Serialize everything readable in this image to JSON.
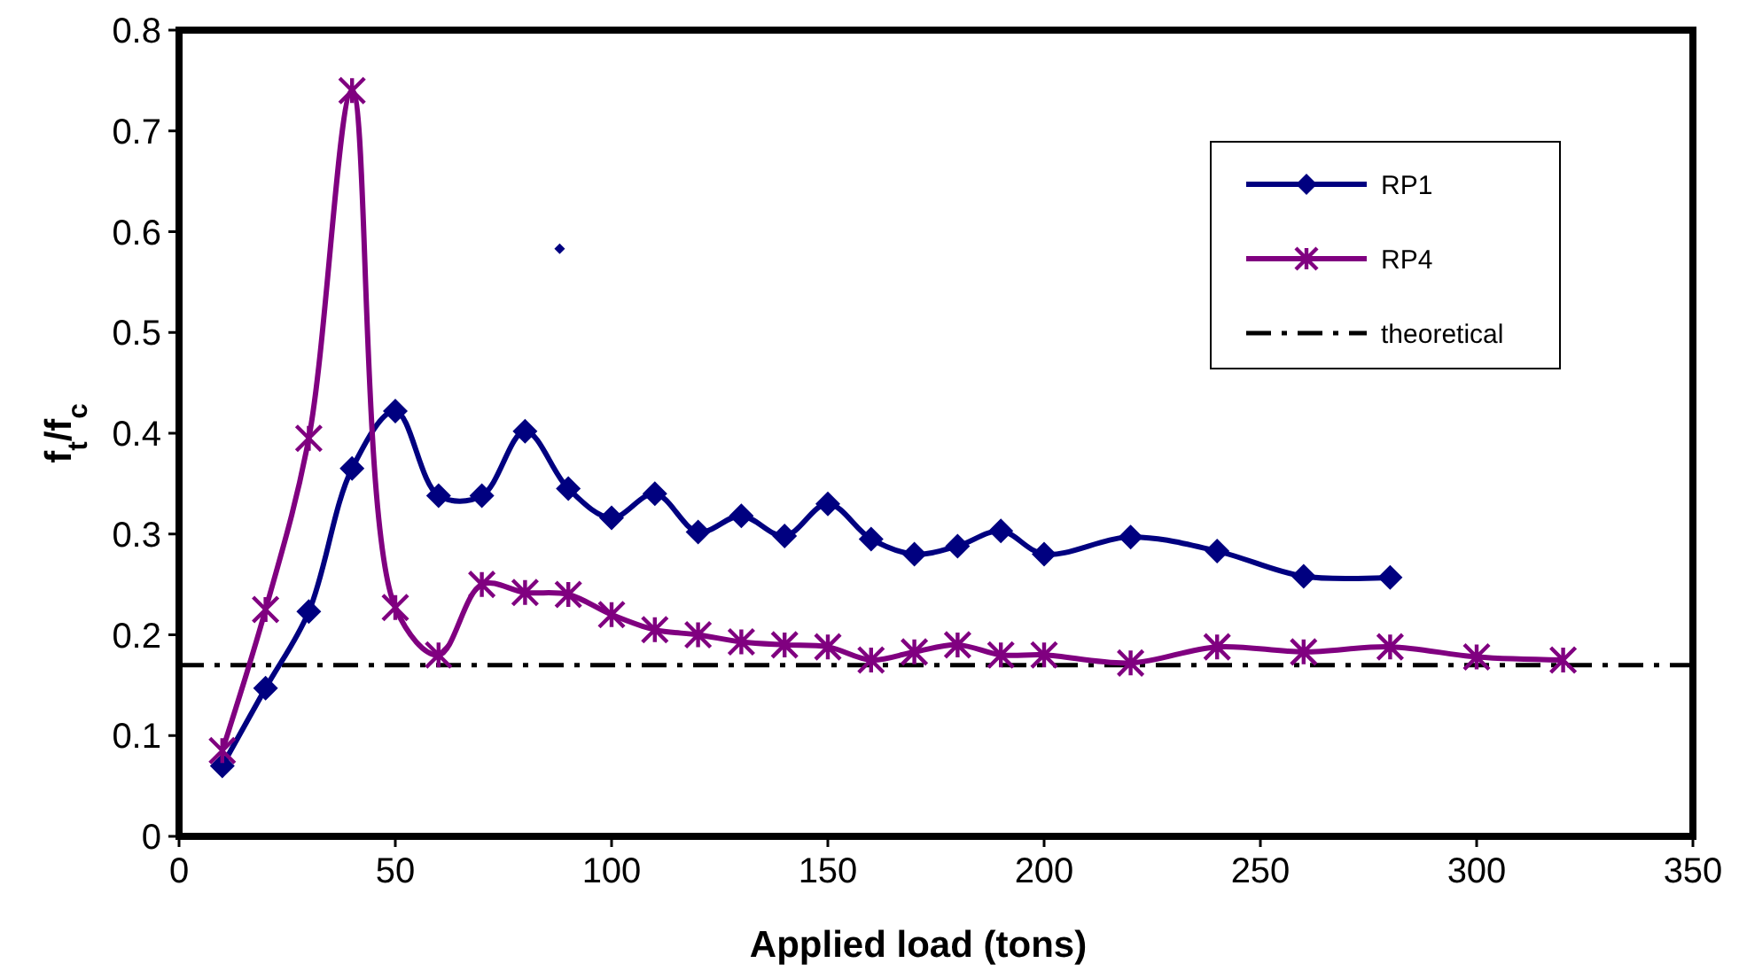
{
  "chart_data": {
    "type": "line",
    "xlabel": "Applied load (tons)",
    "ylabel": "f$_{t}$/f$_{c}$",
    "xlim": [
      0,
      350
    ],
    "xticks": [
      0,
      50,
      100,
      150,
      200,
      250,
      300,
      350
    ],
    "ylim": [
      0,
      0.8
    ],
    "yticks": [
      0,
      0.1,
      0.2,
      0.3,
      0.4,
      0.5,
      0.6,
      0.7,
      0.8
    ],
    "grid": false,
    "legend": "top right",
    "series": [
      {
        "name": "RP1",
        "color": "#000080",
        "marker": "diamond",
        "x": [
          10,
          20,
          30,
          40,
          50,
          60,
          70,
          80,
          90,
          100,
          110,
          120,
          130,
          140,
          150,
          160,
          170,
          180,
          190,
          200,
          220,
          240,
          260,
          280
        ],
        "values": [
          0.07,
          0.147,
          0.223,
          0.365,
          0.422,
          0.338,
          0.338,
          0.402,
          0.345,
          0.316,
          0.34,
          0.302,
          0.318,
          0.298,
          0.33,
          0.295,
          0.28,
          0.288,
          0.303,
          0.28,
          0.297,
          0.283,
          0.258,
          0.257
        ]
      },
      {
        "name": "RP4",
        "color": "#800080",
        "marker": "cross",
        "x": [
          10,
          20,
          30,
          40,
          50,
          60,
          70,
          80,
          90,
          100,
          110,
          120,
          130,
          140,
          150,
          160,
          170,
          180,
          190,
          200,
          220,
          240,
          260,
          280,
          300,
          320
        ],
        "values": [
          0.085,
          0.225,
          0.395,
          0.74,
          0.227,
          0.18,
          0.25,
          0.242,
          0.24,
          0.22,
          0.205,
          0.2,
          0.193,
          0.19,
          0.188,
          0.175,
          0.183,
          0.19,
          0.18,
          0.18,
          0.172,
          0.188,
          0.183,
          0.188,
          0.178,
          0.175
        ]
      },
      {
        "type": "scatter",
        "color": "#000080",
        "marker": "diamond",
        "x": [
          88
        ],
        "values": [
          0.583
        ]
      }
    ],
    "ref_lines": [
      {
        "axis": "y",
        "value": 0.17,
        "label": "theoretical",
        "color": "#000000",
        "line_style": "dashdot"
      }
    ]
  }
}
